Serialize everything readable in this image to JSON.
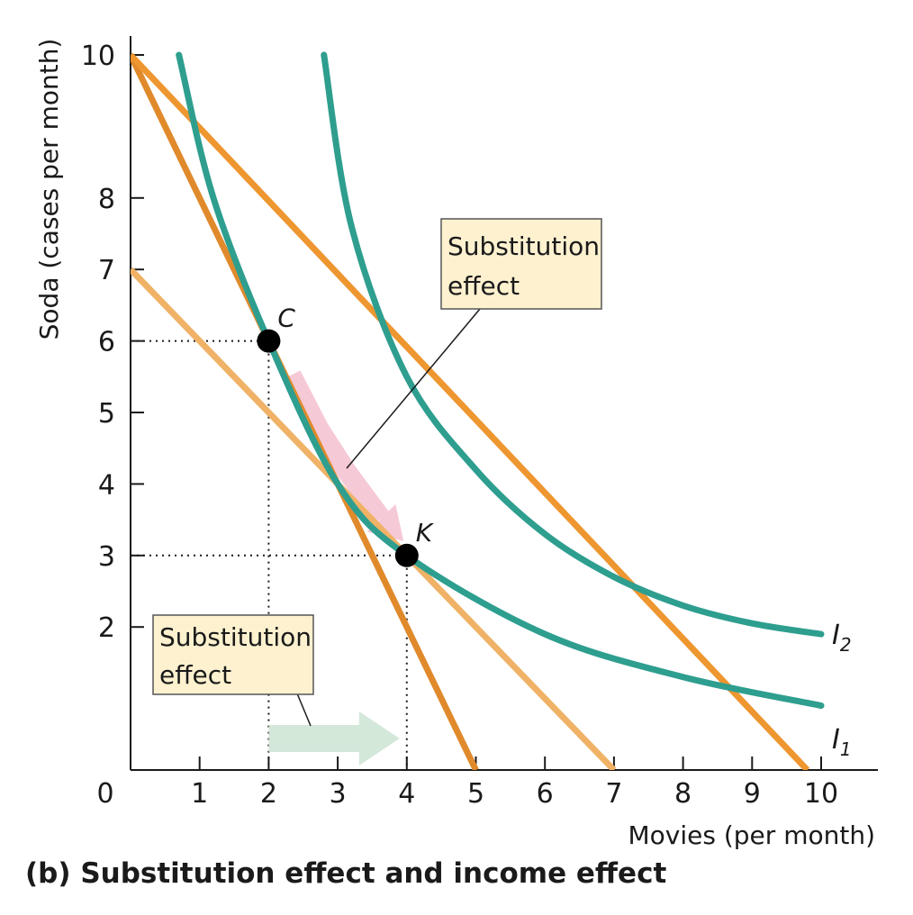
{
  "chart_data": {
    "type": "line",
    "caption": "(b) Substitution effect and income effect",
    "xlabel": "Movies (per month)",
    "ylabel": "Soda (cases per month)",
    "xlim": [
      0,
      10
    ],
    "ylim": [
      0,
      10
    ],
    "origin_label": "0",
    "x_ticks": [
      "1",
      "2",
      "3",
      "4",
      "5",
      "6",
      "7",
      "8",
      "9",
      "10"
    ],
    "y_ticks": [
      "2",
      "3",
      "4",
      "5",
      "6",
      "7",
      "8",
      "10"
    ],
    "y_tick_values": [
      2,
      3,
      4,
      5,
      6,
      7,
      8,
      10
    ],
    "grid": false,
    "budget_lines": [
      {
        "id": "original",
        "x": [
          0,
          5
        ],
        "y": [
          10,
          0
        ],
        "color": "#e08a2c"
      },
      {
        "id": "hypothetical",
        "x": [
          0,
          7
        ],
        "y": [
          7,
          0
        ],
        "color": "#f0b266"
      },
      {
        "id": "new",
        "x": [
          0,
          9.8
        ],
        "y": [
          10,
          0
        ],
        "color": "#ee9630"
      }
    ],
    "indifference_curves": [
      {
        "name": "I",
        "subscript": "1",
        "x": [
          0.7,
          1.2,
          2,
          3,
          4,
          6,
          8,
          10
        ],
        "y": [
          10,
          8,
          6,
          4,
          3,
          1.9,
          1.3,
          0.9
        ],
        "color": "#2e9e8f"
      },
      {
        "name": "I",
        "subscript": "2",
        "x": [
          2.8,
          3.2,
          4,
          5,
          6,
          7,
          8,
          9,
          10
        ],
        "y": [
          10,
          7.6,
          5.5,
          4.2,
          3.3,
          2.7,
          2.3,
          2.05,
          1.9
        ],
        "color": "#2e9e8f"
      }
    ],
    "points": [
      {
        "label": "C",
        "x": 2,
        "y": 6
      },
      {
        "label": "K",
        "x": 4,
        "y": 3
      }
    ],
    "annotations": [
      {
        "text": [
          "Substitution",
          "effect"
        ]
      },
      {
        "text": [
          "Substitution",
          "effect"
        ]
      }
    ],
    "colors": {
      "indifference": "#2e9e8f",
      "annotation_box": "#fdf1cf",
      "pink_arrow": "#f6c9d6",
      "green_arrow": "#cfe5d6"
    }
  }
}
